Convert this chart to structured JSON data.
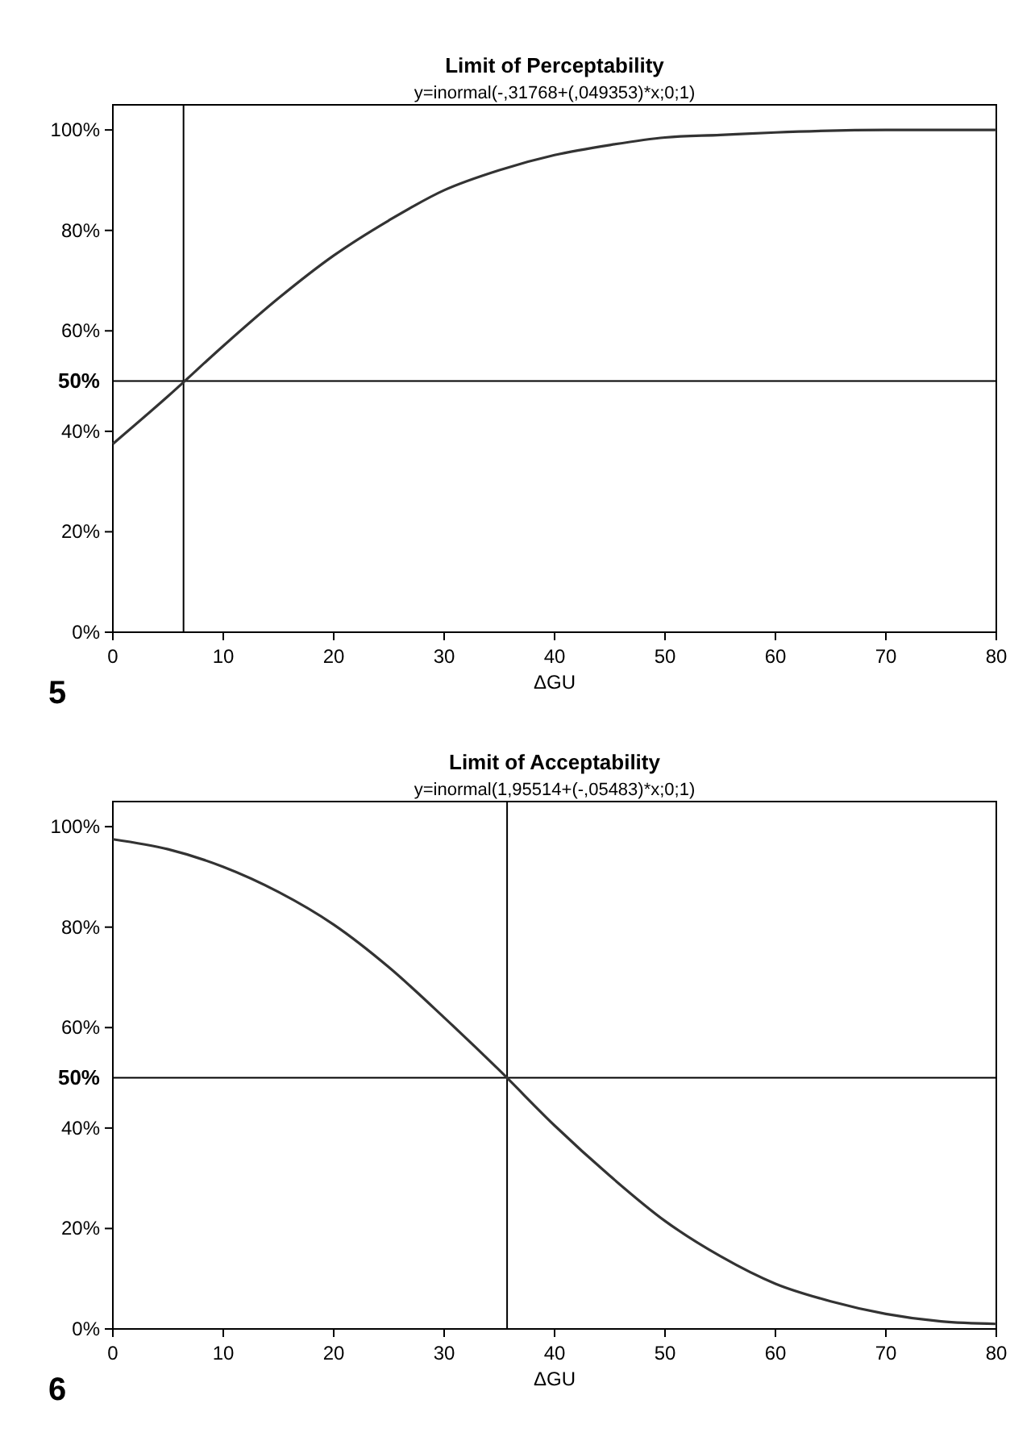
{
  "chart_data": [
    {
      "type": "line",
      "title": "Limit of Perceptability",
      "subtitle": "y=inormal(-,31768+(,049353)*x;0;1)",
      "xlabel": "ΔGU",
      "annotations": [
        "5"
      ],
      "x": [
        0,
        5,
        10,
        15,
        20,
        25,
        30,
        35,
        40,
        45,
        50,
        55,
        60,
        70,
        80
      ],
      "series": [
        {
          "color": "#333333",
          "values": [
            37.5,
            47,
            57,
            66.5,
            75,
            82,
            88,
            92,
            95,
            97,
            98.5,
            99,
            99.5,
            100,
            100
          ]
        }
      ],
      "xlim": [
        0,
        80
      ],
      "ylim": [
        0,
        105
      ],
      "xticks": [
        0,
        10,
        20,
        30,
        40,
        50,
        60,
        70,
        80
      ],
      "yticks": [
        {
          "value": 0,
          "label": "0%"
        },
        {
          "value": 20,
          "label": "20%"
        },
        {
          "value": 40,
          "label": "40%"
        },
        {
          "value": 60,
          "label": "60%"
        },
        {
          "value": 80,
          "label": "80%"
        },
        {
          "value": 100,
          "label": "100%"
        }
      ],
      "ref_lines": [
        {
          "axis": "y",
          "value": 50,
          "label": "50%"
        },
        {
          "axis": "x",
          "value": 6.4
        }
      ],
      "grid": false,
      "line_style": "solid",
      "marker": "none"
    },
    {
      "type": "line",
      "title": "Limit of Acceptability",
      "subtitle": "y=inormal(1,95514+(-,05483)*x;0;1)",
      "xlabel": "ΔGU",
      "annotations": [
        "6"
      ],
      "x": [
        0,
        5,
        10,
        15,
        20,
        25,
        30,
        35,
        40,
        45,
        50,
        55,
        60,
        65,
        70,
        75,
        80
      ],
      "series": [
        {
          "color": "#333333",
          "values": [
            97.5,
            95.5,
            92,
            87,
            80.5,
            72,
            62,
            51.5,
            40.5,
            30.5,
            21.5,
            14.5,
            9,
            5.5,
            3,
            1.5,
            1
          ]
        }
      ],
      "xlim": [
        0,
        80
      ],
      "ylim": [
        0,
        105
      ],
      "xticks": [
        0,
        10,
        20,
        30,
        40,
        50,
        60,
        70,
        80
      ],
      "yticks": [
        {
          "value": 0,
          "label": "0%"
        },
        {
          "value": 20,
          "label": "20%"
        },
        {
          "value": 40,
          "label": "40%"
        },
        {
          "value": 60,
          "label": "60%"
        },
        {
          "value": 80,
          "label": "80%"
        },
        {
          "value": 100,
          "label": "100%"
        }
      ],
      "ref_lines": [
        {
          "axis": "y",
          "value": 50,
          "label": "50%"
        },
        {
          "axis": "x",
          "value": 35.7
        }
      ],
      "grid": false,
      "line_style": "solid",
      "marker": "none"
    }
  ]
}
